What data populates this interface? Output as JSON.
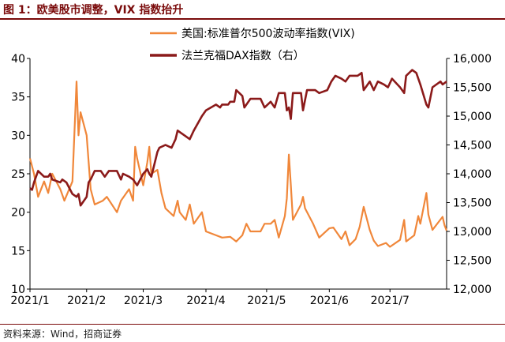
{
  "header": {
    "title": "图 1：欧美股市调整，VIX 指数抬升"
  },
  "footer": {
    "source": "资料来源：Wind，招商证券"
  },
  "colors": {
    "vix": "#F0873A",
    "dax": "#8B1A1A",
    "accent": "#7A0B0B",
    "axis": "#000000"
  },
  "chart_data": {
    "type": "line",
    "title": "图 1：欧美股市调整，VIX 指数抬升",
    "x_ticks": [
      "2021/1",
      "2021/2",
      "2021/3",
      "2021/4",
      "2021/5",
      "2021/6",
      "2021/7"
    ],
    "x_range": [
      "2021-01-04",
      "2021-07-29"
    ],
    "y_left": {
      "min": 10,
      "max": 40,
      "ticks": [
        10,
        15,
        20,
        25,
        30,
        35,
        40
      ]
    },
    "y_right": {
      "min": 12000,
      "max": 16000,
      "ticks": [
        12000,
        12500,
        13000,
        13500,
        14000,
        14500,
        15000,
        15500,
        16000
      ],
      "tick_labels": [
        "12,000",
        "12,500",
        "13,000",
        "13,500",
        "14,000",
        "14,500",
        "15,000",
        "15,500",
        "16,000"
      ]
    },
    "legend_position": "top-center",
    "grid": false,
    "series": [
      {
        "name": "美国:标准普尔500波动率指数(VIX)",
        "axis": "left",
        "points": [
          [
            "2021-01-04",
            27
          ],
          [
            "2021-01-06",
            25
          ],
          [
            "2021-01-08",
            22
          ],
          [
            "2021-01-11",
            24
          ],
          [
            "2021-01-13",
            22.5
          ],
          [
            "2021-01-15",
            25
          ],
          [
            "2021-01-19",
            23
          ],
          [
            "2021-01-21",
            21.5
          ],
          [
            "2021-01-25",
            24
          ],
          [
            "2021-01-27",
            37
          ],
          [
            "2021-01-28",
            30
          ],
          [
            "2021-01-29",
            33
          ],
          [
            "2021-02-01",
            30
          ],
          [
            "2021-02-03",
            23
          ],
          [
            "2021-02-05",
            21
          ],
          [
            "2021-02-09",
            21.5
          ],
          [
            "2021-02-11",
            22
          ],
          [
            "2021-02-16",
            20
          ],
          [
            "2021-02-18",
            21.5
          ],
          [
            "2021-02-22",
            23
          ],
          [
            "2021-02-24",
            21.5
          ],
          [
            "2021-02-25",
            28.5
          ],
          [
            "2021-02-26",
            27
          ],
          [
            "2021-03-01",
            23.5
          ],
          [
            "2021-03-03",
            26.5
          ],
          [
            "2021-03-04",
            28.5
          ],
          [
            "2021-03-05",
            25
          ],
          [
            "2021-03-08",
            25.5
          ],
          [
            "2021-03-10",
            22.5
          ],
          [
            "2021-03-12",
            20.5
          ],
          [
            "2021-03-16",
            19.5
          ],
          [
            "2021-03-18",
            21.5
          ],
          [
            "2021-03-19",
            20
          ],
          [
            "2021-03-22",
            19
          ],
          [
            "2021-03-24",
            21
          ],
          [
            "2021-03-26",
            18.5
          ],
          [
            "2021-03-30",
            20
          ],
          [
            "2021-04-01",
            17.5
          ],
          [
            "2021-04-06",
            17
          ],
          [
            "2021-04-09",
            16.7
          ],
          [
            "2021-04-13",
            16.8
          ],
          [
            "2021-04-16",
            16.2
          ],
          [
            "2021-04-19",
            17
          ],
          [
            "2021-04-21",
            18.5
          ],
          [
            "2021-04-23",
            17.5
          ],
          [
            "2021-04-26",
            17.5
          ],
          [
            "2021-04-28",
            17.5
          ],
          [
            "2021-04-30",
            18.5
          ],
          [
            "2021-05-03",
            18.5
          ],
          [
            "2021-05-05",
            19
          ],
          [
            "2021-05-07",
            16.7
          ],
          [
            "2021-05-10",
            19.5
          ],
          [
            "2021-05-11",
            21.8
          ],
          [
            "2021-05-12",
            27.5
          ],
          [
            "2021-05-13",
            23.5
          ],
          [
            "2021-05-14",
            19
          ],
          [
            "2021-05-18",
            21
          ],
          [
            "2021-05-19",
            22
          ],
          [
            "2021-05-20",
            20.5
          ],
          [
            "2021-05-24",
            18.5
          ],
          [
            "2021-05-27",
            16.7
          ],
          [
            "2021-06-01",
            17.9
          ],
          [
            "2021-06-03",
            18
          ],
          [
            "2021-06-07",
            16.5
          ],
          [
            "2021-06-09",
            17.5
          ],
          [
            "2021-06-11",
            15.7
          ],
          [
            "2021-06-14",
            16.5
          ],
          [
            "2021-06-16",
            18.1
          ],
          [
            "2021-06-18",
            20.7
          ],
          [
            "2021-06-21",
            17.7
          ],
          [
            "2021-06-23",
            16.3
          ],
          [
            "2021-06-25",
            15.6
          ],
          [
            "2021-06-29",
            16
          ],
          [
            "2021-07-01",
            15.5
          ],
          [
            "2021-07-06",
            16.4
          ],
          [
            "2021-07-08",
            19
          ],
          [
            "2021-07-09",
            16.2
          ],
          [
            "2021-07-13",
            17
          ],
          [
            "2021-07-15",
            19.5
          ],
          [
            "2021-07-16",
            18.5
          ],
          [
            "2021-07-19",
            22.5
          ],
          [
            "2021-07-20",
            19.7
          ],
          [
            "2021-07-22",
            17.7
          ],
          [
            "2021-07-27",
            19.4
          ],
          [
            "2021-07-28",
            18.3
          ],
          [
            "2021-07-29",
            17.6
          ]
        ]
      },
      {
        "name": "法兰克福DAX指数（右）",
        "axis": "right",
        "points": [
          [
            "2021-01-04",
            13750
          ],
          [
            "2021-01-05",
            13720
          ],
          [
            "2021-01-06",
            13850
          ],
          [
            "2021-01-07",
            13950
          ],
          [
            "2021-01-08",
            14050
          ],
          [
            "2021-01-11",
            13950
          ],
          [
            "2021-01-13",
            13950
          ],
          [
            "2021-01-14",
            14000
          ],
          [
            "2021-01-15",
            13900
          ],
          [
            "2021-01-19",
            13850
          ],
          [
            "2021-01-20",
            13900
          ],
          [
            "2021-01-22",
            13850
          ],
          [
            "2021-01-25",
            13650
          ],
          [
            "2021-01-27",
            13600
          ],
          [
            "2021-01-28",
            13650
          ],
          [
            "2021-01-29",
            13450
          ],
          [
            "2021-02-01",
            13600
          ],
          [
            "2021-02-02",
            13850
          ],
          [
            "2021-02-03",
            13900
          ],
          [
            "2021-02-05",
            14050
          ],
          [
            "2021-02-08",
            14050
          ],
          [
            "2021-02-10",
            13950
          ],
          [
            "2021-02-12",
            14050
          ],
          [
            "2021-02-16",
            14050
          ],
          [
            "2021-02-18",
            13900
          ],
          [
            "2021-02-19",
            14000
          ],
          [
            "2021-02-22",
            13950
          ],
          [
            "2021-02-24",
            13900
          ],
          [
            "2021-02-26",
            13800
          ],
          [
            "2021-03-01",
            14000
          ],
          [
            "2021-03-03",
            14080
          ],
          [
            "2021-03-04",
            14000
          ],
          [
            "2021-03-05",
            13950
          ],
          [
            "2021-03-08",
            14380
          ],
          [
            "2021-03-09",
            14450
          ],
          [
            "2021-03-12",
            14500
          ],
          [
            "2021-03-15",
            14450
          ],
          [
            "2021-03-17",
            14600
          ],
          [
            "2021-03-18",
            14750
          ],
          [
            "2021-03-22",
            14650
          ],
          [
            "2021-03-24",
            14600
          ],
          [
            "2021-03-26",
            14750
          ],
          [
            "2021-03-30",
            15000
          ],
          [
            "2021-04-01",
            15100
          ],
          [
            "2021-04-06",
            15200
          ],
          [
            "2021-04-08",
            15150
          ],
          [
            "2021-04-09",
            15200
          ],
          [
            "2021-04-12",
            15200
          ],
          [
            "2021-04-13",
            15250
          ],
          [
            "2021-04-15",
            15250
          ],
          [
            "2021-04-16",
            15450
          ],
          [
            "2021-04-19",
            15350
          ],
          [
            "2021-04-20",
            15150
          ],
          [
            "2021-04-21",
            15200
          ],
          [
            "2021-04-23",
            15300
          ],
          [
            "2021-04-26",
            15300
          ],
          [
            "2021-04-28",
            15300
          ],
          [
            "2021-04-30",
            15150
          ],
          [
            "2021-05-03",
            15250
          ],
          [
            "2021-05-05",
            15150
          ],
          [
            "2021-05-07",
            15400
          ],
          [
            "2021-05-10",
            15400
          ],
          [
            "2021-05-11",
            15100
          ],
          [
            "2021-05-12",
            15150
          ],
          [
            "2021-05-13",
            14950
          ],
          [
            "2021-05-14",
            15400
          ],
          [
            "2021-05-18",
            15400
          ],
          [
            "2021-05-19",
            15100
          ],
          [
            "2021-05-21",
            15450
          ],
          [
            "2021-05-25",
            15450
          ],
          [
            "2021-05-27",
            15400
          ],
          [
            "2021-05-31",
            15450
          ],
          [
            "2021-06-02",
            15600
          ],
          [
            "2021-06-04",
            15700
          ],
          [
            "2021-06-07",
            15650
          ],
          [
            "2021-06-09",
            15600
          ],
          [
            "2021-06-11",
            15700
          ],
          [
            "2021-06-15",
            15700
          ],
          [
            "2021-06-17",
            15750
          ],
          [
            "2021-06-18",
            15450
          ],
          [
            "2021-06-21",
            15600
          ],
          [
            "2021-06-23",
            15450
          ],
          [
            "2021-06-25",
            15600
          ],
          [
            "2021-06-28",
            15550
          ],
          [
            "2021-06-30",
            15500
          ],
          [
            "2021-07-02",
            15650
          ],
          [
            "2021-07-06",
            15500
          ],
          [
            "2021-07-08",
            15400
          ],
          [
            "2021-07-09",
            15700
          ],
          [
            "2021-07-12",
            15800
          ],
          [
            "2021-07-14",
            15750
          ],
          [
            "2021-07-16",
            15550
          ],
          [
            "2021-07-19",
            15200
          ],
          [
            "2021-07-20",
            15150
          ],
          [
            "2021-07-22",
            15500
          ],
          [
            "2021-07-26",
            15600
          ],
          [
            "2021-07-27",
            15550
          ],
          [
            "2021-07-29",
            15600
          ]
        ]
      }
    ]
  }
}
